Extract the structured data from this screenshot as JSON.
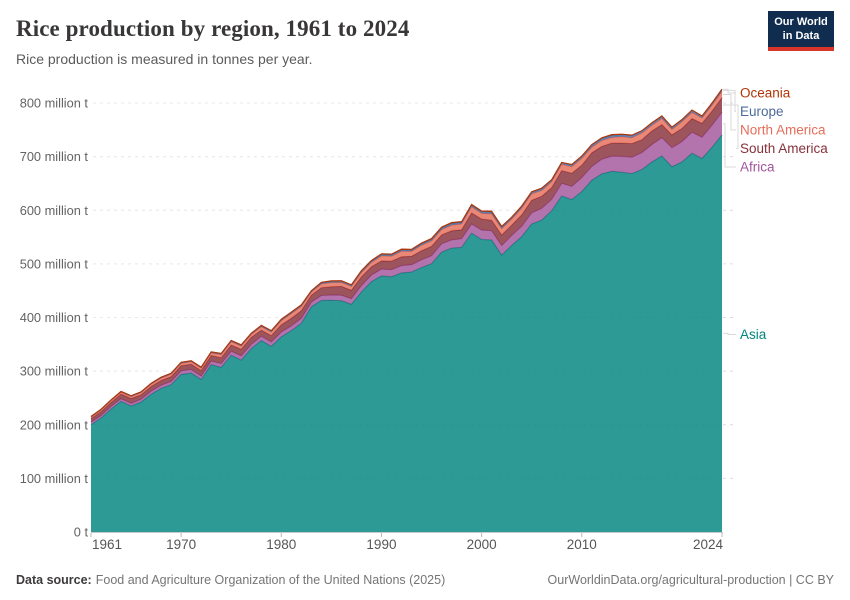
{
  "header": {
    "title": "Rice production by region, 1961 to 2024",
    "subtitle": "Rice production is measured in tonnes per year.",
    "logo": {
      "line1": "Our World",
      "line2": "in Data"
    }
  },
  "footer": {
    "source_label": "Data source:",
    "source_value": "Food and Agriculture Organization of the United Nations (2025)",
    "link": "OurWorldinData.org/agricultural-production | CC BY"
  },
  "legend": {
    "items": [
      {
        "label": "Oceania",
        "color": "#B13507"
      },
      {
        "label": "Europe",
        "color": "#4C6A9C"
      },
      {
        "label": "North America",
        "color": "#E56E5A"
      },
      {
        "label": "South America",
        "color": "#883039"
      },
      {
        "label": "Africa",
        "color": "#A2559C"
      },
      {
        "label": "Asia",
        "color": "#00847E"
      }
    ]
  },
  "chart_data": {
    "type": "area",
    "stacked": true,
    "title": "Rice production by region, 1961 to 2024",
    "ylabel": "tonnes per year",
    "unit": "million t",
    "ylim": [
      0,
      830
    ],
    "grid": true,
    "x": [
      1961,
      1962,
      1963,
      1964,
      1965,
      1966,
      1967,
      1968,
      1969,
      1970,
      1971,
      1972,
      1973,
      1974,
      1975,
      1976,
      1977,
      1978,
      1979,
      1980,
      1981,
      1982,
      1983,
      1984,
      1985,
      1986,
      1987,
      1988,
      1989,
      1990,
      1991,
      1992,
      1993,
      1994,
      1995,
      1996,
      1997,
      1998,
      1999,
      2000,
      2001,
      2002,
      2003,
      2004,
      2005,
      2006,
      2007,
      2008,
      2009,
      2010,
      2011,
      2012,
      2013,
      2014,
      2015,
      2016,
      2017,
      2018,
      2019,
      2020,
      2021,
      2022,
      2023,
      2024
    ],
    "xticks": [
      1961,
      1970,
      1980,
      1990,
      2000,
      2010,
      2024
    ],
    "yticks": [
      {
        "value": 0,
        "label": "0 t"
      },
      {
        "value": 100,
        "label": "100 million t"
      },
      {
        "value": 200,
        "label": "200 million t"
      },
      {
        "value": 300,
        "label": "300 million t"
      },
      {
        "value": 400,
        "label": "400 million t"
      },
      {
        "value": 500,
        "label": "500 million t"
      },
      {
        "value": 600,
        "label": "600 million t"
      },
      {
        "value": 700,
        "label": "700 million t"
      },
      {
        "value": 800,
        "label": "800 million t"
      }
    ],
    "series": [
      {
        "name": "Asia",
        "color": "#00847E",
        "values": [
          200.1,
          212.5,
          229.3,
          243.8,
          234.9,
          242.4,
          256.8,
          267.8,
          274.7,
          293.8,
          296.5,
          284.3,
          312.1,
          307.0,
          329.7,
          320.6,
          342.2,
          357.1,
          346.1,
          364.1,
          375.5,
          389.1,
          419.9,
          431.8,
          432.0,
          431.3,
          424.6,
          447.6,
          467.0,
          477.6,
          475.9,
          483.2,
          484.7,
          493.2,
          500.4,
          522.0,
          529.5,
          530.8,
          557.3,
          545.5,
          544.7,
          516.4,
          534.5,
          550.9,
          574.5,
          581.6,
          599.2,
          626.5,
          620.0,
          634.9,
          656.1,
          667.8,
          672.7,
          670.9,
          668.3,
          676.0,
          689.9,
          701.3,
          681.0,
          689.9,
          706.4,
          696.5,
          717.4,
          740.6
        ]
      },
      {
        "name": "Africa",
        "color": "#A2559C",
        "values": [
          4.4,
          4.5,
          4.7,
          4.8,
          5.0,
          5.1,
          5.5,
          5.7,
          5.9,
          6.4,
          6.6,
          6.4,
          6.6,
          7.0,
          7.5,
          7.7,
          7.6,
          7.9,
          8.2,
          8.6,
          8.9,
          9.0,
          8.7,
          9.2,
          9.8,
          10.2,
          10.4,
          11.7,
          12.1,
          12.6,
          13.2,
          13.5,
          13.5,
          14.2,
          14.6,
          15.5,
          15.1,
          16.2,
          17.1,
          17.4,
          17.2,
          17.7,
          18.4,
          19.0,
          20.6,
          21.9,
          21.0,
          23.5,
          24.5,
          26.0,
          25.5,
          27.2,
          28.0,
          29.5,
          30.5,
          31.5,
          32.5,
          34.0,
          35.5,
          38.0,
          39.0,
          39.5,
          41.0,
          42.0
        ]
      },
      {
        "name": "South America",
        "color": "#883039",
        "values": [
          6.9,
          7.3,
          7.5,
          8.5,
          9.0,
          8.3,
          9.1,
          9.0,
          9.2,
          9.9,
          9.8,
          10.2,
          10.5,
          11.0,
          11.5,
          12.5,
          13.0,
          11.5,
          12.0,
          13.9,
          14.1,
          14.5,
          13.0,
          14.5,
          15.7,
          16.5,
          15.8,
          16.5,
          15.5,
          15.3,
          16.0,
          16.5,
          16.0,
          17.0,
          17.5,
          16.5,
          17.0,
          16.5,
          20.5,
          20.7,
          19.5,
          19.8,
          19.5,
          21.5,
          23.5,
          22.5,
          22.0,
          24.0,
          24.5,
          23.2,
          25.5,
          24.0,
          24.5,
          25.0,
          25.5,
          24.0,
          25.5,
          24.5,
          24.0,
          24.5,
          25.5,
          26.0,
          26.5,
          27.5
        ]
      },
      {
        "name": "North America",
        "color": "#E56E5A",
        "values": [
          2.7,
          3.0,
          3.2,
          3.4,
          3.5,
          3.9,
          4.1,
          4.3,
          4.2,
          4.2,
          4.4,
          4.5,
          4.6,
          5.6,
          6.1,
          5.8,
          5.5,
          6.3,
          6.5,
          7.4,
          8.7,
          7.9,
          5.5,
          7.0,
          7.5,
          7.3,
          7.0,
          8.0,
          8.0,
          9.3,
          9.2,
          10.2,
          9.0,
          10.5,
          10.4,
          10.0,
          10.5,
          10.8,
          11.5,
          10.6,
          11.8,
          11.5,
          11.0,
          12.5,
          12.0,
          10.8,
          11.0,
          11.5,
          12.0,
          12.5,
          10.5,
          11.0,
          10.5,
          11.5,
          11.0,
          12.5,
          10.5,
          11.5,
          10.0,
          12.5,
          11.5,
          10.0,
          11.0,
          11.5
        ]
      },
      {
        "name": "Europe",
        "color": "#4C6A9C",
        "values": [
          1.3,
          1.4,
          1.4,
          1.5,
          1.5,
          1.5,
          1.6,
          1.6,
          1.7,
          1.8,
          1.8,
          1.8,
          1.9,
          2.0,
          2.0,
          1.9,
          1.8,
          2.1,
          2.1,
          2.2,
          2.2,
          2.3,
          2.3,
          2.4,
          2.5,
          2.6,
          2.7,
          2.8,
          2.9,
          2.9,
          2.8,
          2.9,
          2.8,
          2.9,
          3.1,
          3.2,
          3.3,
          3.2,
          3.2,
          3.2,
          3.3,
          3.4,
          3.4,
          3.5,
          3.4,
          3.5,
          3.6,
          3.6,
          4.2,
          4.4,
          4.3,
          4.2,
          4.1,
          4.0,
          4.1,
          4.1,
          4.0,
          4.0,
          4.0,
          4.0,
          4.1,
          3.4,
          3.6,
          3.8
        ]
      },
      {
        "name": "Oceania",
        "color": "#B13507",
        "values": [
          0.16,
          0.17,
          0.18,
          0.2,
          0.2,
          0.22,
          0.25,
          0.27,
          0.28,
          0.3,
          0.3,
          0.35,
          0.33,
          0.4,
          0.45,
          0.5,
          0.55,
          0.6,
          0.65,
          0.7,
          0.75,
          0.8,
          0.6,
          0.7,
          0.85,
          0.7,
          0.75,
          0.8,
          0.9,
          1.0,
          1.1,
          1.2,
          1.1,
          1.2,
          1.3,
          1.4,
          1.5,
          1.4,
          1.4,
          1.4,
          1.9,
          1.3,
          0.4,
          0.6,
          0.5,
          1.0,
          0.2,
          0.02,
          0.07,
          0.2,
          0.8,
          1.0,
          1.2,
          0.9,
          0.8,
          0.3,
          0.9,
          0.7,
          0.5,
          0.06,
          0.5,
          0.6,
          0.5,
          0.6
        ]
      }
    ],
    "legend_position": "right"
  }
}
